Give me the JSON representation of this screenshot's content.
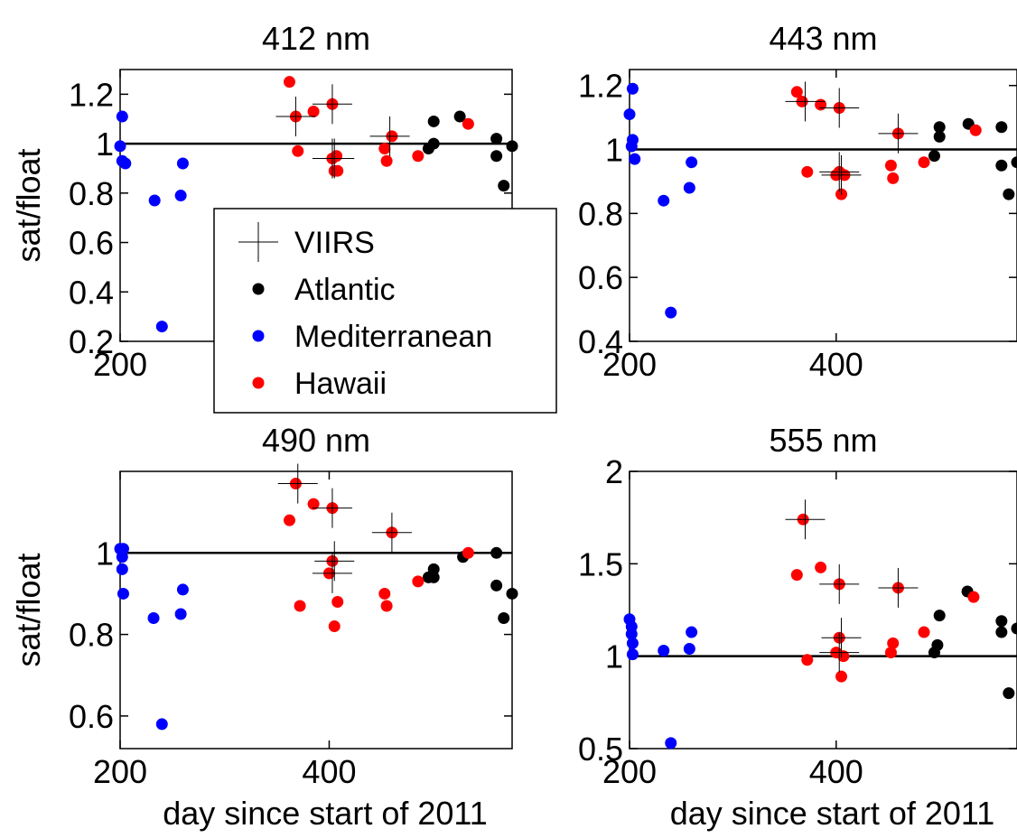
{
  "colors": {
    "viirs": "#000000",
    "Atlantic": "#000000",
    "Mediterranean": "#0000ff",
    "Hawaii": "#ff0000",
    "reference_line": "#000000"
  },
  "legend": {
    "placement": "overlapping top panels, center-left",
    "entries": [
      {
        "label": "VIIRS",
        "marker": "cross",
        "color": "#000000"
      },
      {
        "label": "Atlantic",
        "marker": "dot",
        "color": "#000000"
      },
      {
        "label": "Mediterranean",
        "marker": "dot",
        "color": "#0000ff"
      },
      {
        "label": "Hawaii",
        "marker": "dot",
        "color": "#ff0000"
      }
    ]
  },
  "chart_data": [
    {
      "type": "scatter",
      "title": "412 nm",
      "ylabel": "sat/float",
      "xlabel": "",
      "xlim": [
        200,
        575
      ],
      "ylim": [
        0.2,
        1.3
      ],
      "xticks": [
        {
          "v": 200,
          "label": "200"
        }
      ],
      "yticks": [
        {
          "v": 0.2,
          "label": "0.2"
        },
        {
          "v": 0.4,
          "label": "0.4"
        },
        {
          "v": 0.6,
          "label": "0.6"
        },
        {
          "v": 0.8,
          "label": "0.8"
        },
        {
          "v": 1,
          "label": "1"
        },
        {
          "v": 1.2,
          "label": "1.2"
        }
      ],
      "reference_y": 1,
      "series": [
        {
          "name": "Atlantic",
          "points": [
            [
              495,
              0.98
            ],
            [
              500,
              1.0
            ],
            [
              500,
              1.09
            ],
            [
              525,
              1.11
            ],
            [
              560,
              1.02
            ],
            [
              560,
              0.95
            ],
            [
              567,
              0.83
            ],
            [
              575,
              0.99
            ]
          ]
        },
        {
          "name": "Mediterranean",
          "points": [
            [
              202,
              1.11
            ],
            [
              200,
              0.99
            ],
            [
              202,
              0.93
            ],
            [
              205,
              0.92
            ],
            [
              233,
              0.77
            ],
            [
              240,
              0.26
            ],
            [
              258,
              0.79
            ],
            [
              260,
              0.92
            ]
          ]
        },
        {
          "name": "Hawaii",
          "points": [
            [
              362,
              1.25
            ],
            [
              368,
              1.11
            ],
            [
              370,
              0.97
            ],
            [
              385,
              1.13
            ],
            [
              403,
              1.16
            ],
            [
              403,
              0.94
            ],
            [
              407,
              0.95
            ],
            [
              405,
              0.89
            ],
            [
              408,
              0.89
            ],
            [
              453,
              0.98
            ],
            [
              455,
              0.93
            ],
            [
              460,
              1.03
            ],
            [
              485,
              0.95
            ],
            [
              533,
              1.08
            ]
          ]
        },
        {
          "name": "VIIRS",
          "points": [
            [
              368,
              1.11
            ],
            [
              403,
              1.16
            ],
            [
              403,
              0.94
            ],
            [
              405,
              0.94
            ],
            [
              458,
              1.03
            ]
          ]
        }
      ]
    },
    {
      "type": "scatter",
      "title": "443 nm",
      "ylabel": "",
      "xlabel": "",
      "xlim": [
        200,
        575
      ],
      "ylim": [
        0.4,
        1.25
      ],
      "xticks": [
        {
          "v": 200,
          "label": "200"
        },
        {
          "v": 400,
          "label": "400"
        }
      ],
      "yticks": [
        {
          "v": 0.4,
          "label": "0.4"
        },
        {
          "v": 0.6,
          "label": "0.6"
        },
        {
          "v": 0.8,
          "label": "0.8"
        },
        {
          "v": 1,
          "label": "1"
        },
        {
          "v": 1.2,
          "label": "1.2"
        }
      ],
      "reference_y": 1,
      "series": [
        {
          "name": "Atlantic",
          "points": [
            [
              495,
              0.98
            ],
            [
              500,
              1.04
            ],
            [
              500,
              1.07
            ],
            [
              528,
              1.08
            ],
            [
              560,
              1.07
            ],
            [
              560,
              0.95
            ],
            [
              567,
              0.86
            ],
            [
              575,
              0.96
            ]
          ]
        },
        {
          "name": "Mediterranean",
          "points": [
            [
              200,
              1.11
            ],
            [
              203,
              1.19
            ],
            [
              203,
              1.03
            ],
            [
              202,
              1.01
            ],
            [
              205,
              0.97
            ],
            [
              233,
              0.84
            ],
            [
              240,
              0.49
            ],
            [
              258,
              0.88
            ],
            [
              260,
              0.96
            ]
          ]
        },
        {
          "name": "Hawaii",
          "points": [
            [
              362,
              1.18
            ],
            [
              367,
              1.15
            ],
            [
              372,
              0.93
            ],
            [
              385,
              1.14
            ],
            [
              400,
              0.92
            ],
            [
              403,
              1.13
            ],
            [
              403,
              0.93
            ],
            [
              405,
              0.86
            ],
            [
              408,
              0.92
            ],
            [
              453,
              0.95
            ],
            [
              455,
              0.91
            ],
            [
              460,
              1.05
            ],
            [
              485,
              0.96
            ],
            [
              535,
              1.06
            ]
          ]
        },
        {
          "name": "VIIRS",
          "points": [
            [
              370,
              1.15
            ],
            [
              403,
              1.13
            ],
            [
              403,
              0.93
            ],
            [
              405,
              0.92
            ],
            [
              460,
              1.05
            ]
          ]
        }
      ]
    },
    {
      "type": "scatter",
      "title": "490 nm",
      "ylabel": "sat/float",
      "xlabel": "day since start of 2011",
      "xlim": [
        200,
        575
      ],
      "ylim": [
        0.52,
        1.2
      ],
      "xticks": [
        {
          "v": 200,
          "label": "200"
        },
        {
          "v": 400,
          "label": "400"
        }
      ],
      "yticks": [
        {
          "v": 0.6,
          "label": "0.6"
        },
        {
          "v": 0.8,
          "label": "0.8"
        },
        {
          "v": 1,
          "label": "1"
        }
      ],
      "reference_y": 1,
      "series": [
        {
          "name": "Atlantic",
          "points": [
            [
              495,
              0.94
            ],
            [
              500,
              0.96
            ],
            [
              500,
              0.94
            ],
            [
              528,
              0.99
            ],
            [
              560,
              1.0
            ],
            [
              560,
              0.92
            ],
            [
              567,
              0.84
            ],
            [
              575,
              0.9
            ]
          ]
        },
        {
          "name": "Mediterranean",
          "points": [
            [
              200,
              1.01
            ],
            [
              203,
              1.01
            ],
            [
              202,
              0.99
            ],
            [
              202,
              0.96
            ],
            [
              203,
              0.9
            ],
            [
              232,
              0.84
            ],
            [
              240,
              0.58
            ],
            [
              258,
              0.85
            ],
            [
              260,
              0.91
            ]
          ]
        },
        {
          "name": "Hawaii",
          "points": [
            [
              362,
              1.08
            ],
            [
              368,
              1.17
            ],
            [
              372,
              0.87
            ],
            [
              385,
              1.12
            ],
            [
              400,
              0.95
            ],
            [
              403,
              1.11
            ],
            [
              403,
              0.98
            ],
            [
              405,
              0.82
            ],
            [
              408,
              0.88
            ],
            [
              453,
              0.9
            ],
            [
              455,
              0.87
            ],
            [
              460,
              1.05
            ],
            [
              485,
              0.93
            ],
            [
              533,
              1.0
            ]
          ]
        },
        {
          "name": "VIIRS",
          "points": [
            [
              370,
              1.17
            ],
            [
              403,
              1.11
            ],
            [
              403,
              0.95
            ],
            [
              405,
              0.98
            ],
            [
              460,
              1.05
            ]
          ]
        }
      ]
    },
    {
      "type": "scatter",
      "title": "555 nm",
      "ylabel": "",
      "xlabel": "day since start of 2011",
      "xlim": [
        200,
        575
      ],
      "ylim": [
        0.5,
        2.0
      ],
      "xticks": [
        {
          "v": 200,
          "label": "200"
        },
        {
          "v": 400,
          "label": "400"
        }
      ],
      "yticks": [
        {
          "v": 0.5,
          "label": "0.5"
        },
        {
          "v": 1,
          "label": "1"
        },
        {
          "v": 1.5,
          "label": "1.5"
        },
        {
          "v": 2,
          "label": "2"
        }
      ],
      "reference_y": 1,
      "series": [
        {
          "name": "Atlantic",
          "points": [
            [
              495,
              1.02
            ],
            [
              498,
              1.06
            ],
            [
              500,
              1.22
            ],
            [
              527,
              1.35
            ],
            [
              560,
              1.19
            ],
            [
              560,
              1.13
            ],
            [
              567,
              0.8
            ],
            [
              575,
              1.15
            ]
          ]
        },
        {
          "name": "Mediterranean",
          "points": [
            [
              200,
              1.2
            ],
            [
              202,
              1.16
            ],
            [
              202,
              1.12
            ],
            [
              203,
              1.07
            ],
            [
              203,
              1.01
            ],
            [
              233,
              1.03
            ],
            [
              240,
              0.53
            ],
            [
              258,
              1.04
            ],
            [
              260,
              1.13
            ]
          ]
        },
        {
          "name": "Hawaii",
          "points": [
            [
              362,
              1.44
            ],
            [
              368,
              1.74
            ],
            [
              372,
              0.98
            ],
            [
              385,
              1.48
            ],
            [
              400,
              1.02
            ],
            [
              403,
              1.39
            ],
            [
              403,
              1.1
            ],
            [
              405,
              0.89
            ],
            [
              407,
              1.0
            ],
            [
              453,
              1.02
            ],
            [
              455,
              1.07
            ],
            [
              460,
              1.37
            ],
            [
              485,
              1.13
            ],
            [
              533,
              1.32
            ]
          ]
        },
        {
          "name": "VIIRS",
          "points": [
            [
              370,
              1.74
            ],
            [
              403,
              1.39
            ],
            [
              403,
              1.02
            ],
            [
              405,
              1.1
            ],
            [
              460,
              1.37
            ]
          ]
        }
      ]
    }
  ]
}
